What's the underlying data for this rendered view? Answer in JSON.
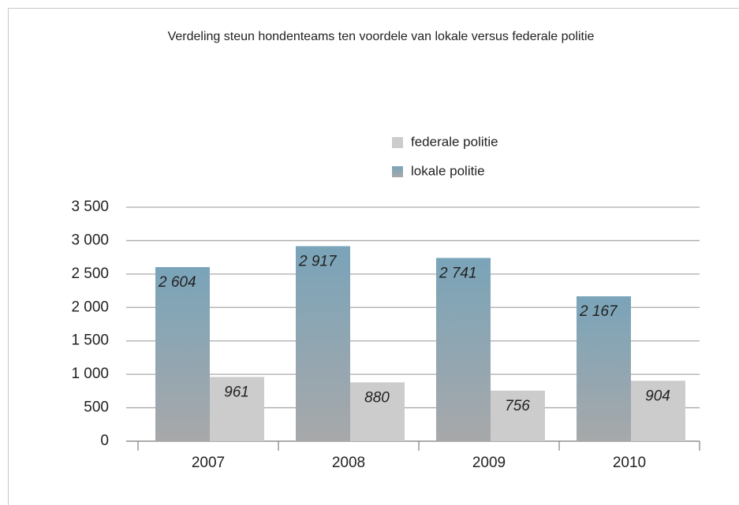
{
  "chart_data": {
    "type": "bar",
    "title": "Verdeling steun hondenteams ten voordele van lokale versus federale politie",
    "categories": [
      "2007",
      "2008",
      "2009",
      "2010"
    ],
    "series": [
      {
        "name": "lokale politie",
        "color": "#7fa6ba",
        "values": [
          2604,
          2917,
          2741,
          2167
        ],
        "value_labels": [
          "2 604",
          "2 917",
          "2 741",
          "2 167"
        ]
      },
      {
        "name": "federale politie",
        "color": "#cccccd",
        "values": [
          961,
          880,
          756,
          904
        ]
      }
    ],
    "ylim": [
      0,
      3500
    ],
    "yticks": [
      0,
      500,
      {
        "value": 1000,
        "label": "1 000"
      },
      {
        "value": 1500,
        "label": "1 500"
      },
      {
        "value": 2000,
        "label": "2 000"
      },
      {
        "value": 2500,
        "label": "2 500"
      },
      {
        "value": 3000,
        "label": "3 000"
      },
      {
        "value": 3500,
        "label": "3 500"
      }
    ],
    "grid": true
  }
}
